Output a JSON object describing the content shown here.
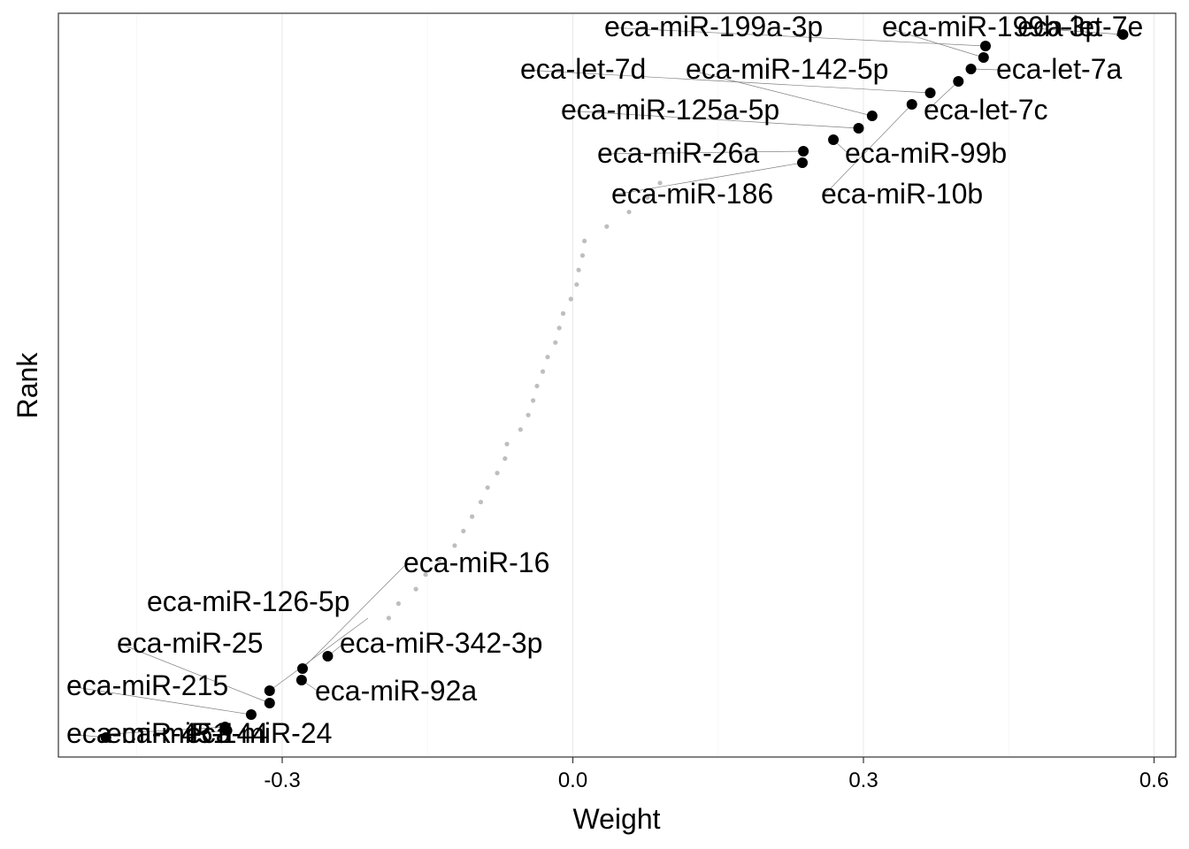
{
  "chart_data": {
    "type": "scatter",
    "title": "",
    "xlabel": "Weight",
    "ylabel": "Rank",
    "xlim": [
      -0.525,
      0.612
    ],
    "ylim": [
      0.5,
      49.5
    ],
    "x_ticks": [
      -0.3,
      0.0,
      0.3,
      0.6
    ],
    "x_tick_labels": [
      "-0.3",
      "0.0",
      "0.3",
      "0.6"
    ],
    "grid": true,
    "legend": "none",
    "y_tick_labels": "none",
    "colors": {
      "highlight": "#000000",
      "background_points": "#bebebe",
      "leader_line": "#808080",
      "grid": "#ebebeb"
    },
    "highlighted_points": [
      {
        "label": "eca-miR-451",
        "x": -0.482,
        "y": 1
      },
      {
        "label": "eca-miR-144",
        "x": -0.359,
        "y": 2
      },
      {
        "label": "eca-miR-24",
        "x": -0.357,
        "y": 3
      },
      {
        "label": "eca-miR-215",
        "x": -0.332,
        "y": 4
      },
      {
        "label": "eca-miR-25",
        "x": -0.313,
        "y": 5
      },
      {
        "label": "eca-miR-92a",
        "x": -0.28,
        "y": 6
      },
      {
        "label": "eca-miR-16",
        "x": -0.279,
        "y": 7
      },
      {
        "label": "eca-miR-342-3p",
        "x": -0.253,
        "y": 8
      },
      {
        "label": "eca-miR-186",
        "x": 0.237,
        "y": 40
      },
      {
        "label": "eca-miR-26a",
        "x": 0.238,
        "y": 41
      },
      {
        "label": "eca-miR-99b",
        "x": 0.269,
        "y": 42
      },
      {
        "label": "eca-miR-125a-5p",
        "x": 0.295,
        "y": 43
      },
      {
        "label": "eca-miR-142-5p",
        "x": 0.309,
        "y": 44
      },
      {
        "label": "eca-miR-10b",
        "x": 0.35,
        "y": 45
      },
      {
        "label": "eca-let-7d",
        "x": 0.369,
        "y": 46
      },
      {
        "label": "eca-let-7c",
        "x": 0.398,
        "y": 47
      },
      {
        "label": "eca-let-7a",
        "x": 0.411,
        "y": 48
      },
      {
        "label": "eca-miR-199b-3p",
        "x": 0.424,
        "y": 49
      },
      {
        "label": "eca-miR-199a-3p",
        "x": 0.426,
        "y": 50
      },
      {
        "label": "eca-let-7e",
        "x": 0.568,
        "y": 51
      }
    ],
    "other_points": [
      {
        "x": -0.19,
        "y": 9
      },
      {
        "x": -0.18,
        "y": 10
      },
      {
        "x": -0.162,
        "y": 11
      },
      {
        "x": -0.152,
        "y": 12
      },
      {
        "x": -0.138,
        "y": 13
      },
      {
        "x": -0.122,
        "y": 14
      },
      {
        "x": -0.113,
        "y": 15
      },
      {
        "x": -0.104,
        "y": 16
      },
      {
        "x": -0.095,
        "y": 17
      },
      {
        "x": -0.088,
        "y": 18
      },
      {
        "x": -0.078,
        "y": 19
      },
      {
        "x": -0.07,
        "y": 20
      },
      {
        "x": -0.068,
        "y": 21
      },
      {
        "x": -0.054,
        "y": 22
      },
      {
        "x": -0.046,
        "y": 23
      },
      {
        "x": -0.041,
        "y": 24
      },
      {
        "x": -0.037,
        "y": 25
      },
      {
        "x": -0.031,
        "y": 26
      },
      {
        "x": -0.026,
        "y": 27
      },
      {
        "x": -0.018,
        "y": 28
      },
      {
        "x": -0.014,
        "y": 29
      },
      {
        "x": -0.01,
        "y": 30
      },
      {
        "x": -0.002,
        "y": 31
      },
      {
        "x": 0.004,
        "y": 32
      },
      {
        "x": 0.006,
        "y": 33
      },
      {
        "x": 0.01,
        "y": 34
      },
      {
        "x": 0.012,
        "y": 35
      },
      {
        "x": 0.035,
        "y": 36
      },
      {
        "x": 0.058,
        "y": 37
      },
      {
        "x": 0.077,
        "y": 38
      },
      {
        "x": 0.09,
        "y": 39
      }
    ]
  }
}
